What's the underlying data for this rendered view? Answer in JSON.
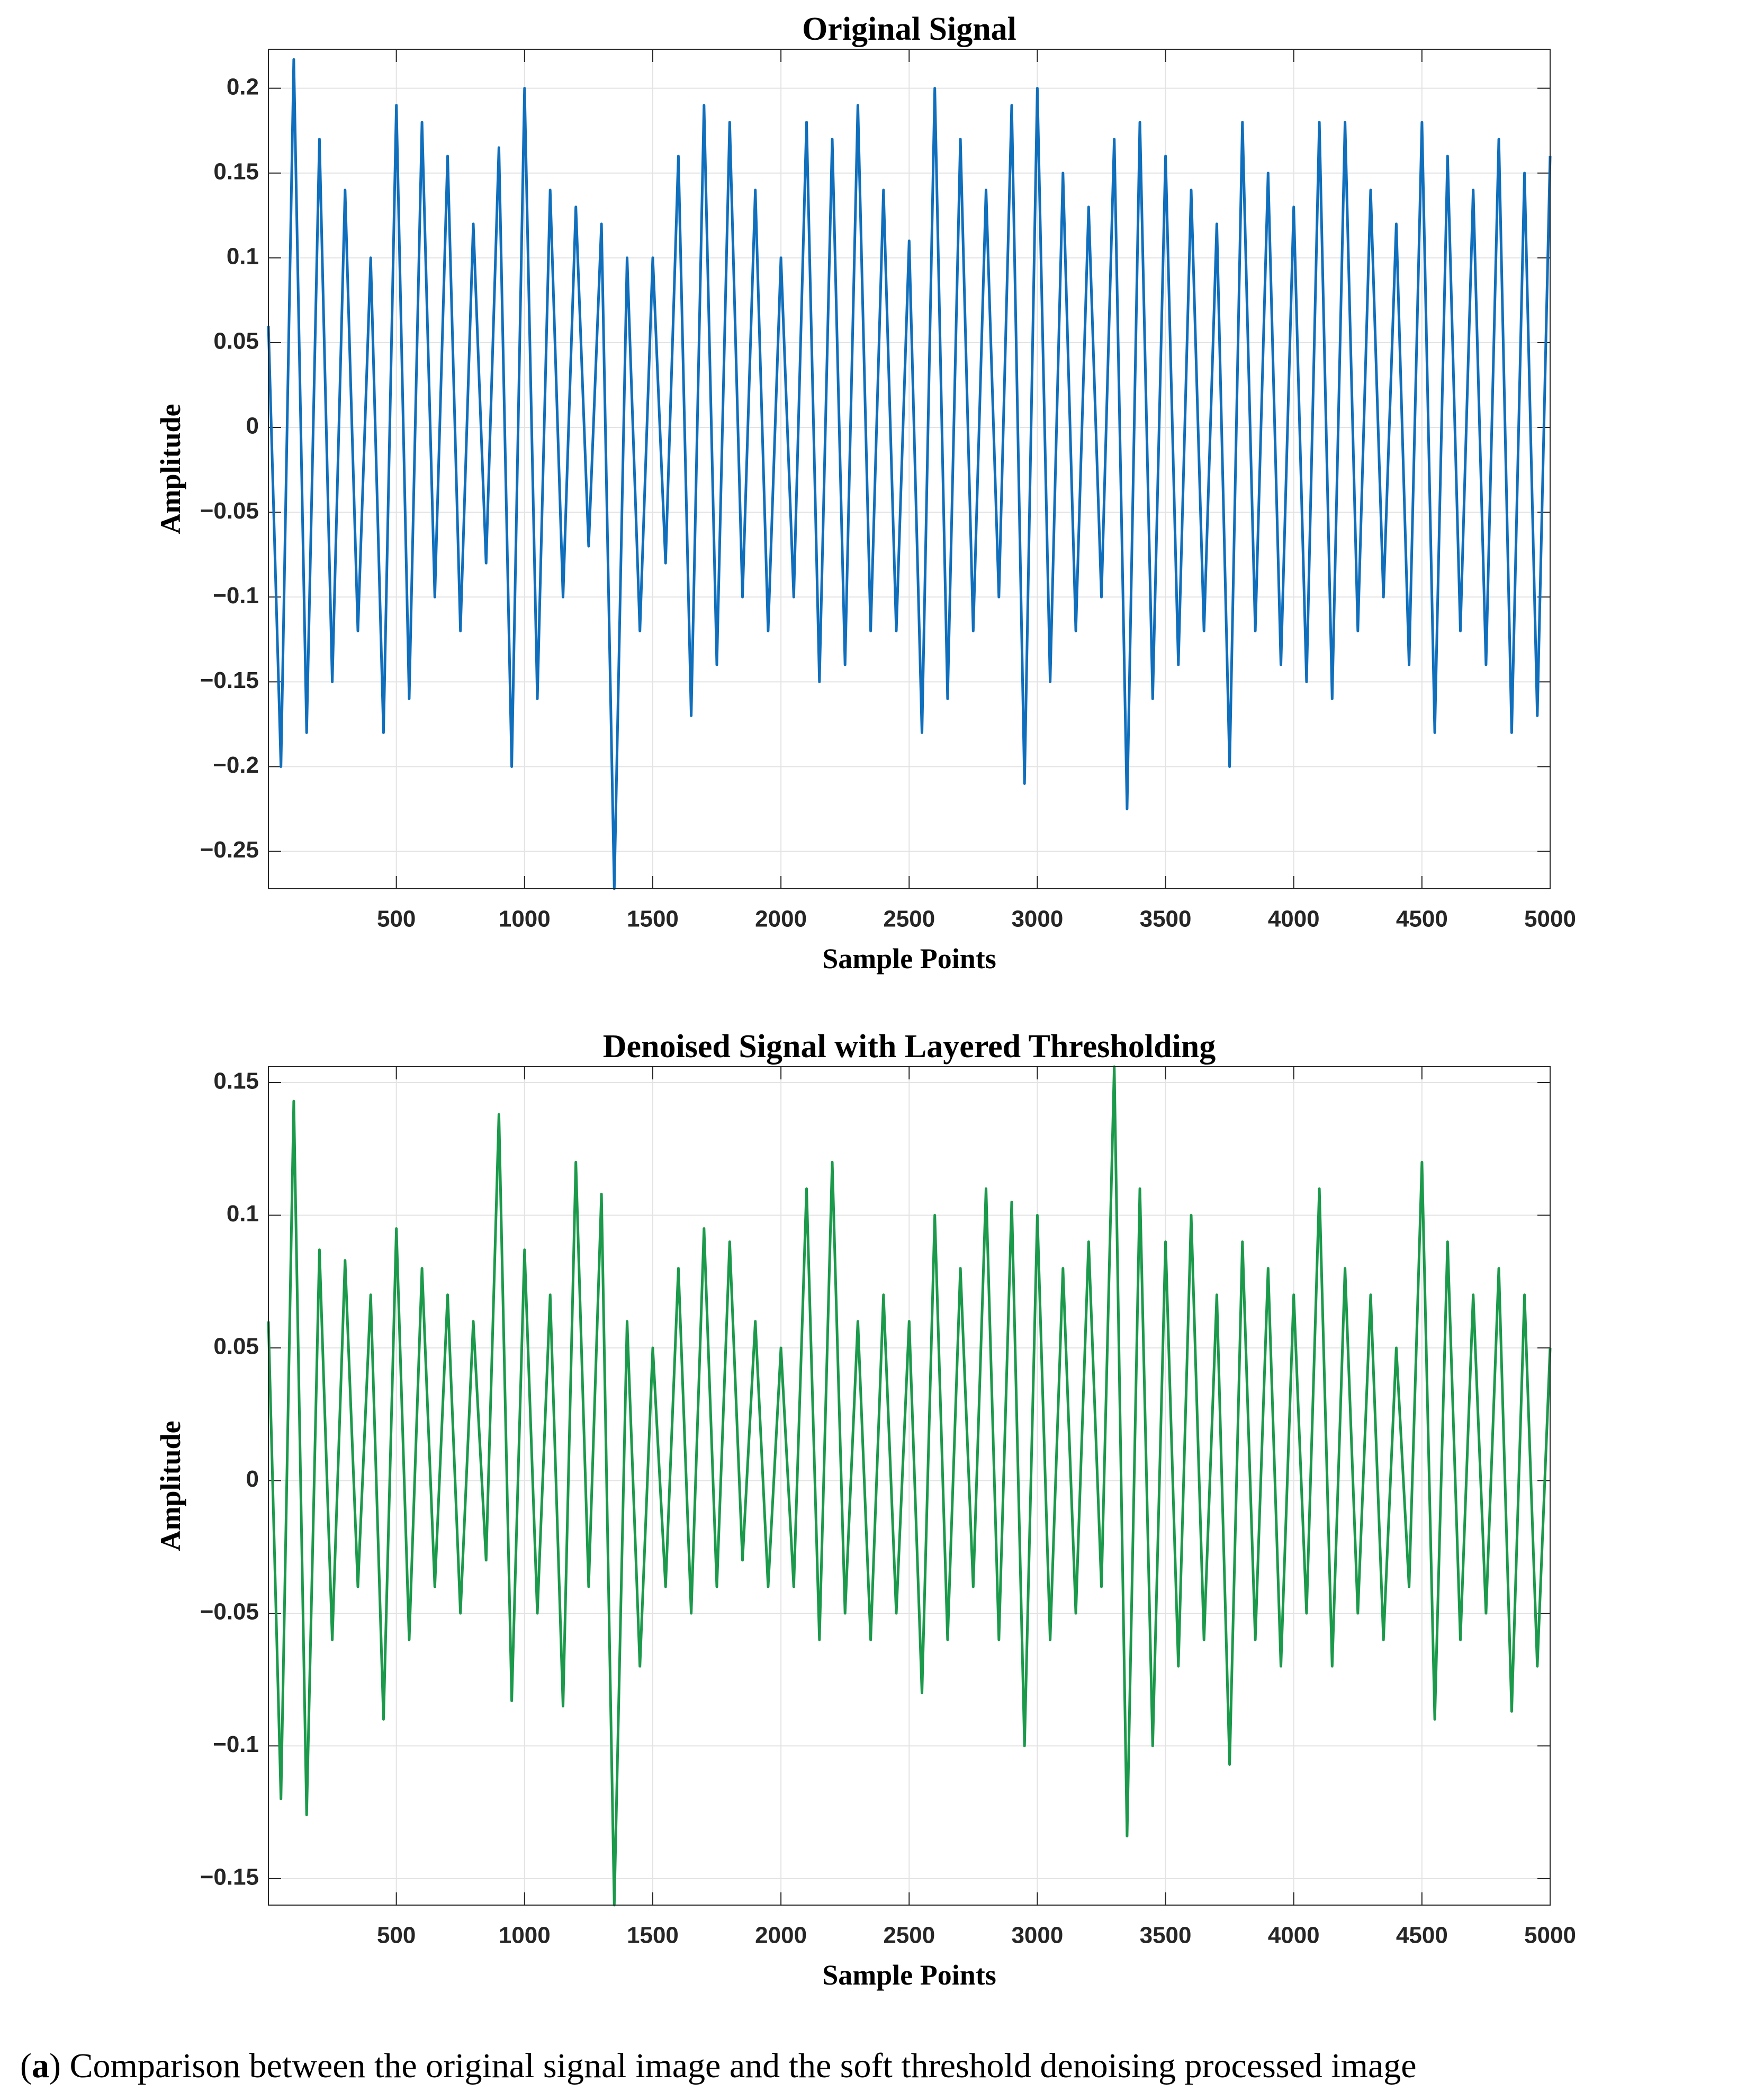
{
  "chart_data": [
    {
      "type": "line",
      "title": "Original Signal",
      "x_label": "Sample Points",
      "y_label": "Amplitude",
      "grid": true,
      "xlim": [
        1,
        5000
      ],
      "xticks": [
        500,
        1000,
        1500,
        2000,
        2500,
        3000,
        3500,
        4000,
        4500,
        5000
      ],
      "ylim": [
        -0.272,
        0.223
      ],
      "yticks": [
        {
          "value": -0.25,
          "label": "−0.25"
        },
        {
          "value": -0.2,
          "label": "−0.2"
        },
        {
          "value": -0.15,
          "label": "−0.15"
        },
        {
          "value": -0.1,
          "label": "−0.1"
        },
        {
          "value": -0.05,
          "label": "−0.05"
        },
        0,
        0.05,
        0.1,
        0.15,
        0.2
      ],
      "x": [
        1,
        50,
        100,
        150,
        200,
        250,
        300,
        350,
        400,
        450,
        500,
        550,
        600,
        650,
        700,
        750,
        800,
        850,
        900,
        950,
        1000,
        1050,
        1100,
        1150,
        1200,
        1250,
        1300,
        1350,
        1400,
        1450,
        1500,
        1550,
        1600,
        1650,
        1700,
        1750,
        1800,
        1850,
        1900,
        1950,
        2000,
        2050,
        2100,
        2150,
        2200,
        2250,
        2300,
        2350,
        2400,
        2450,
        2500,
        2550,
        2600,
        2650,
        2700,
        2750,
        2800,
        2850,
        2900,
        2950,
        3000,
        3050,
        3100,
        3150,
        3200,
        3250,
        3300,
        3350,
        3400,
        3450,
        3500,
        3550,
        3600,
        3650,
        3700,
        3750,
        3800,
        3850,
        3900,
        3950,
        4000,
        4050,
        4100,
        4150,
        4200,
        4250,
        4300,
        4350,
        4400,
        4450,
        4500,
        4550,
        4600,
        4650,
        4700,
        4750,
        4800,
        4850,
        4900,
        4950,
        5000
      ],
      "series": [
        {
          "name": "Original Signal",
          "color": "#0f6fbd",
          "values": [
            0.06,
            -0.2,
            0.217,
            -0.18,
            0.17,
            -0.15,
            0.14,
            -0.12,
            0.1,
            -0.18,
            0.19,
            -0.16,
            0.18,
            -0.1,
            0.16,
            -0.12,
            0.12,
            -0.08,
            0.165,
            -0.2,
            0.2,
            -0.16,
            0.14,
            -0.1,
            0.13,
            -0.07,
            0.12,
            -0.272,
            0.1,
            -0.12,
            0.1,
            -0.08,
            0.16,
            -0.17,
            0.19,
            -0.14,
            0.18,
            -0.1,
            0.14,
            -0.12,
            0.1,
            -0.1,
            0.18,
            -0.15,
            0.17,
            -0.14,
            0.19,
            -0.12,
            0.14,
            -0.12,
            0.11,
            -0.18,
            0.2,
            -0.16,
            0.17,
            -0.12,
            0.14,
            -0.1,
            0.19,
            -0.21,
            0.2,
            -0.15,
            0.15,
            -0.12,
            0.13,
            -0.1,
            0.17,
            -0.225,
            0.18,
            -0.16,
            0.16,
            -0.14,
            0.14,
            -0.12,
            0.12,
            -0.2,
            0.18,
            -0.12,
            0.15,
            -0.14,
            0.13,
            -0.15,
            0.18,
            -0.16,
            0.18,
            -0.12,
            0.14,
            -0.1,
            0.12,
            -0.14,
            0.18,
            -0.18,
            0.16,
            -0.12,
            0.14,
            -0.14,
            0.17,
            -0.18,
            0.15,
            -0.17,
            0.16
          ]
        }
      ]
    },
    {
      "type": "line",
      "title": "Denoised Signal with Layered Thresholding",
      "x_label": "Sample Points",
      "y_label": "Amplitude",
      "grid": true,
      "xlim": [
        1,
        5000
      ],
      "xticks": [
        500,
        1000,
        1500,
        2000,
        2500,
        3000,
        3500,
        4000,
        4500,
        5000
      ],
      "ylim": [
        -0.16,
        0.156
      ],
      "yticks": [
        {
          "value": -0.15,
          "label": "−0.15"
        },
        {
          "value": -0.1,
          "label": "−0.1"
        },
        {
          "value": -0.05,
          "label": "−0.05"
        },
        0,
        0.05,
        0.1,
        0.15
      ],
      "x": [
        1,
        50,
        100,
        150,
        200,
        250,
        300,
        350,
        400,
        450,
        500,
        550,
        600,
        650,
        700,
        750,
        800,
        850,
        900,
        950,
        1000,
        1050,
        1100,
        1150,
        1200,
        1250,
        1300,
        1350,
        1400,
        1450,
        1500,
        1550,
        1600,
        1650,
        1700,
        1750,
        1800,
        1850,
        1900,
        1950,
        2000,
        2050,
        2100,
        2150,
        2200,
        2250,
        2300,
        2350,
        2400,
        2450,
        2500,
        2550,
        2600,
        2650,
        2700,
        2750,
        2800,
        2850,
        2900,
        2950,
        3000,
        3050,
        3100,
        3150,
        3200,
        3250,
        3300,
        3350,
        3400,
        3450,
        3500,
        3550,
        3600,
        3650,
        3700,
        3750,
        3800,
        3850,
        3900,
        3950,
        4000,
        4050,
        4100,
        4150,
        4200,
        4250,
        4300,
        4350,
        4400,
        4450,
        4500,
        4550,
        4600,
        4650,
        4700,
        4750,
        4800,
        4850,
        4900,
        4950,
        5000
      ],
      "series": [
        {
          "name": "Denoised Signal",
          "color": "#1a9a4a",
          "values": [
            0.06,
            -0.12,
            0.143,
            -0.126,
            0.087,
            -0.06,
            0.083,
            -0.04,
            0.07,
            -0.09,
            0.095,
            -0.06,
            0.08,
            -0.04,
            0.07,
            -0.05,
            0.06,
            -0.03,
            0.138,
            -0.083,
            0.087,
            -0.05,
            0.07,
            -0.085,
            0.12,
            -0.04,
            0.108,
            -0.16,
            0.06,
            -0.07,
            0.05,
            -0.04,
            0.08,
            -0.05,
            0.095,
            -0.04,
            0.09,
            -0.03,
            0.06,
            -0.04,
            0.05,
            -0.04,
            0.11,
            -0.06,
            0.12,
            -0.05,
            0.06,
            -0.06,
            0.07,
            -0.05,
            0.06,
            -0.08,
            0.1,
            -0.06,
            0.08,
            -0.04,
            0.11,
            -0.06,
            0.105,
            -0.1,
            0.1,
            -0.06,
            0.08,
            -0.05,
            0.09,
            -0.04,
            0.156,
            -0.134,
            0.11,
            -0.1,
            0.09,
            -0.07,
            0.1,
            -0.06,
            0.07,
            -0.107,
            0.09,
            -0.06,
            0.08,
            -0.07,
            0.07,
            -0.05,
            0.11,
            -0.07,
            0.08,
            -0.05,
            0.07,
            -0.06,
            0.05,
            -0.04,
            0.12,
            -0.09,
            0.09,
            -0.06,
            0.07,
            -0.05,
            0.08,
            -0.087,
            0.07,
            -0.07,
            0.05
          ]
        }
      ]
    }
  ],
  "caption": {
    "label": "a",
    "text": "Comparison between the original signal image and the soft threshold denoising processed image"
  }
}
